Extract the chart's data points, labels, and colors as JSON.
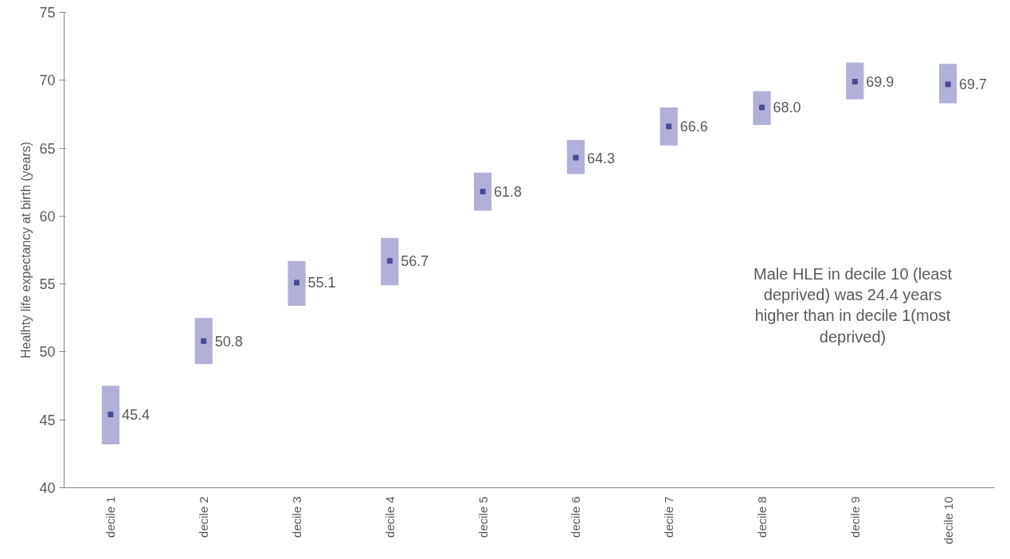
{
  "chart_data": {
    "type": "bar",
    "ylabel": "Healhty life expectancy at birth (years)",
    "categories": [
      "decile 1",
      "decile 2",
      "decile 3",
      "decile 4",
      "decile 5",
      "decile 6",
      "decile 7",
      "decile 8",
      "decile 9",
      "decile 10"
    ],
    "series": [
      {
        "color": "#b0b0d8",
        "base": [
          43.2,
          49.1,
          53.4,
          54.9,
          60.4,
          63.1,
          65.2,
          66.7,
          68.6,
          68.3
        ],
        "values": [
          4.3,
          3.4,
          3.3,
          3.5,
          2.8,
          2.5,
          2.8,
          2.5,
          2.7,
          2.9
        ]
      },
      {
        "type": "scatter",
        "color": "#4a4a94",
        "marker": "square",
        "values": [
          45.4,
          50.8,
          55.1,
          56.7,
          61.8,
          64.3,
          66.6,
          68.0,
          69.9,
          69.7
        ],
        "value_labels": [
          "45.4",
          "50.8",
          "55.1",
          "56.7",
          "61.8",
          "64.3",
          "66.6",
          "68.0",
          "69.9",
          "69.7"
        ]
      }
    ],
    "ylim": [
      40,
      75
    ],
    "yticks": [
      40,
      45,
      50,
      55,
      60,
      65,
      70,
      75
    ],
    "annotations": [
      "Male HLE in decile 10 (least deprived) was 24.4 years higher than in decile 1(most deprived)"
    ]
  }
}
